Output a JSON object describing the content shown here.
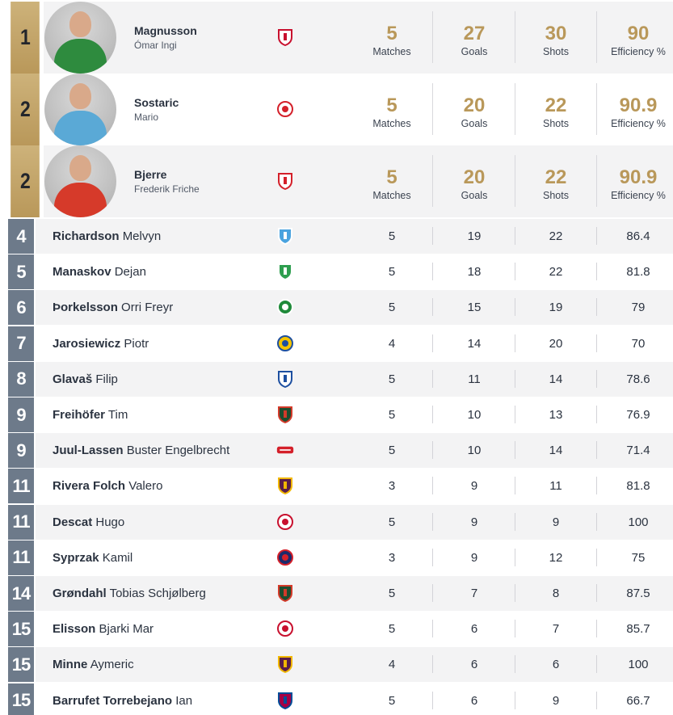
{
  "labels": {
    "matches": "Matches",
    "goals": "Goals",
    "shots": "Shots",
    "efficiency": "Efficiency %"
  },
  "colors": {
    "gold": "#b9985a",
    "rank_blue": "#6d7a8a"
  },
  "top_players": [
    {
      "rank": "1",
      "last": "Magnusson",
      "first": "Ómar Ingi",
      "club_icon": "sc-magdeburg-crest-icon",
      "matches": "5",
      "goals": "27",
      "shots": "30",
      "efficiency": "90",
      "jersey": "#2e8b3e"
    },
    {
      "rank": "2",
      "last": "Sostaric",
      "first": "Mario",
      "club_icon": "pick-szeged-crest-icon",
      "matches": "5",
      "goals": "20",
      "shots": "22",
      "efficiency": "90.9",
      "jersey": "#5aa9d6"
    },
    {
      "rank": "2",
      "last": "Bjerre",
      "first": "Frederik Friche",
      "club_icon": "aalborg-lion-crest-icon",
      "matches": "5",
      "goals": "20",
      "shots": "22",
      "efficiency": "90.9",
      "jersey": "#d63a2a"
    }
  ],
  "players": [
    {
      "rank": "4",
      "last": "Richardson",
      "first": "Melvyn",
      "club_icon": "pelister-blue-crest-icon",
      "matches": "5",
      "goals": "19",
      "shots": "22",
      "efficiency": "86.4"
    },
    {
      "rank": "5",
      "last": "Manaskov",
      "first": "Dejan",
      "club_icon": "pelister-green-crest-icon",
      "matches": "5",
      "goals": "18",
      "shots": "22",
      "efficiency": "81.8"
    },
    {
      "rank": "6",
      "last": "Þorkelsson",
      "first": "Orri Freyr",
      "club_icon": "sporting-crest-icon",
      "matches": "5",
      "goals": "15",
      "shots": "19",
      "efficiency": "79"
    },
    {
      "rank": "7",
      "last": "Jarosiewicz",
      "first": "Piotr",
      "club_icon": "kielce-crest-icon",
      "matches": "4",
      "goals": "14",
      "shots": "20",
      "efficiency": "70"
    },
    {
      "rank": "8",
      "last": "Glavaš",
      "first": "Filip",
      "club_icon": "zagreb-crest-icon",
      "matches": "5",
      "goals": "11",
      "shots": "14",
      "efficiency": "78.6"
    },
    {
      "rank": "9",
      "last": "Freihöfer",
      "first": "Tim",
      "club_icon": "fuchse-crest-icon",
      "matches": "5",
      "goals": "10",
      "shots": "13",
      "efficiency": "76.9"
    },
    {
      "rank": "9",
      "last": "Juul-Lassen",
      "first": "Buster Engelbrecht",
      "club_icon": "aalborg-wordmark-icon",
      "matches": "5",
      "goals": "10",
      "shots": "14",
      "efficiency": "71.4"
    },
    {
      "rank": "11",
      "last": "Rivera Folch",
      "first": "Valero",
      "club_icon": "hbc-nantes-crest-icon",
      "matches": "3",
      "goals": "9",
      "shots": "11",
      "efficiency": "81.8"
    },
    {
      "rank": "11",
      "last": "Descat",
      "first": "Hugo",
      "club_icon": "veszprem-crest-icon",
      "matches": "5",
      "goals": "9",
      "shots": "9",
      "efficiency": "100"
    },
    {
      "rank": "11",
      "last": "Syprzak",
      "first": "Kamil",
      "club_icon": "psg-crest-icon",
      "matches": "3",
      "goals": "9",
      "shots": "12",
      "efficiency": "75"
    },
    {
      "rank": "14",
      "last": "Grøndahl",
      "first": "Tobias Schjølberg",
      "club_icon": "fuchse-crest-icon",
      "matches": "5",
      "goals": "7",
      "shots": "8",
      "efficiency": "87.5"
    },
    {
      "rank": "15",
      "last": "Elisson",
      "first": "Bjarki Mar",
      "club_icon": "veszprem-crest-icon",
      "matches": "5",
      "goals": "6",
      "shots": "7",
      "efficiency": "85.7"
    },
    {
      "rank": "15",
      "last": "Minne",
      "first": "Aymeric",
      "club_icon": "hbc-nantes-crest-icon",
      "matches": "4",
      "goals": "6",
      "shots": "6",
      "efficiency": "100"
    },
    {
      "rank": "15",
      "last": "Barrufet Torrebejano",
      "first": "Ian",
      "club_icon": "barcelona-crest-icon",
      "matches": "5",
      "goals": "6",
      "shots": "9",
      "efficiency": "66.7"
    }
  ]
}
